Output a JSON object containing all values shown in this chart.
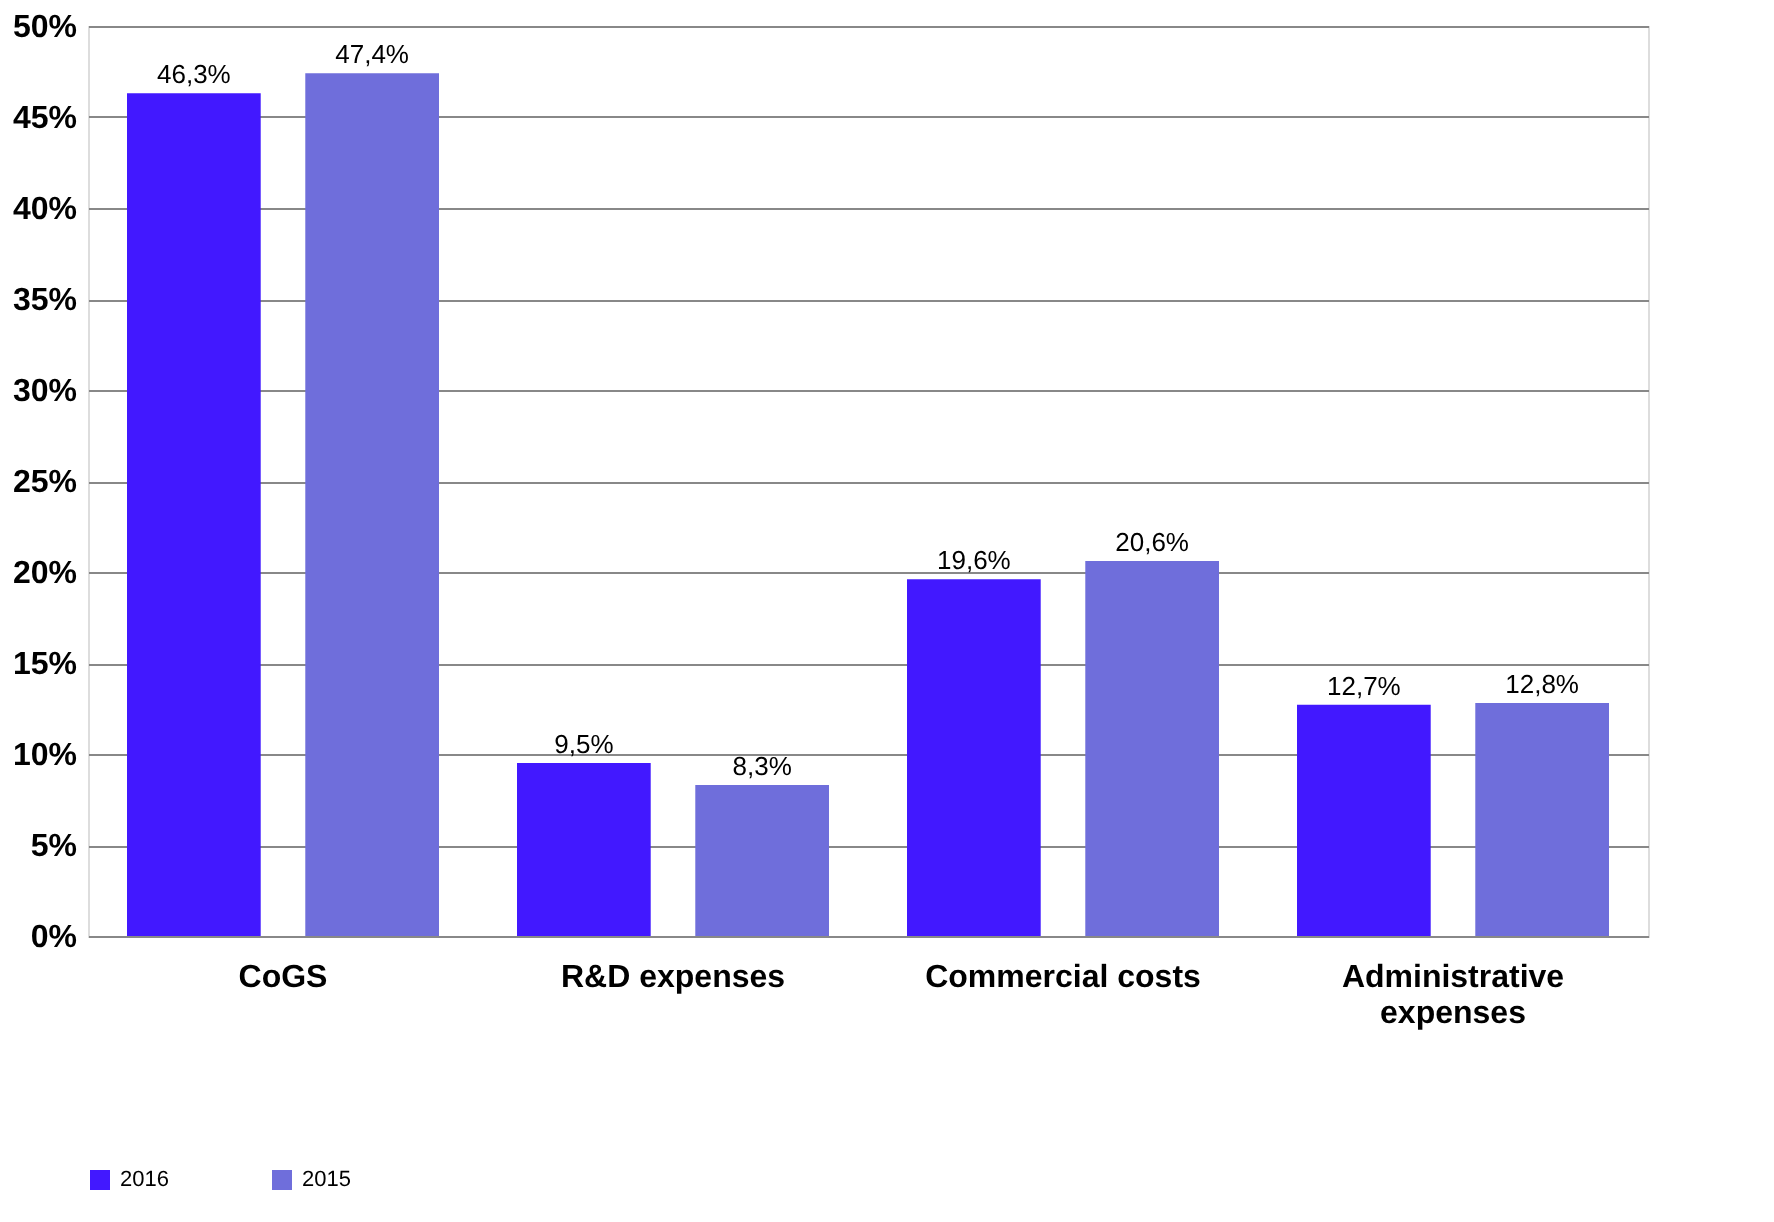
{
  "chart_data": {
    "type": "bar",
    "categories": [
      "CoGS",
      "R&D expenses",
      "Commercial costs",
      "Administrative expenses"
    ],
    "series": [
      {
        "name": "2016",
        "color": "#4218ff",
        "values": [
          46.3,
          9.5,
          19.6,
          12.7
        ],
        "value_labels": [
          "46,3%",
          "9,5%",
          "19,6%",
          "12,7%"
        ]
      },
      {
        "name": "2015",
        "color": "#6f6edb",
        "values": [
          47.4,
          8.3,
          20.6,
          12.8
        ],
        "value_labels": [
          "47,4%",
          "8,3%",
          "20,6%",
          "12,8%"
        ]
      }
    ],
    "ylim": [
      0,
      50
    ],
    "yticks": [
      {
        "value": 0,
        "label": "0%"
      },
      {
        "value": 5,
        "label": "5%"
      },
      {
        "value": 10,
        "label": "10%"
      },
      {
        "value": 15,
        "label": "15%"
      },
      {
        "value": 20,
        "label": "20%"
      },
      {
        "value": 25,
        "label": "25%"
      },
      {
        "value": 30,
        "label": "30%"
      },
      {
        "value": 35,
        "label": "35%"
      },
      {
        "value": 40,
        "label": "40%"
      },
      {
        "value": 45,
        "label": "45%"
      },
      {
        "value": 50,
        "label": "50%"
      }
    ],
    "grid": "y",
    "legend": "bottom"
  }
}
